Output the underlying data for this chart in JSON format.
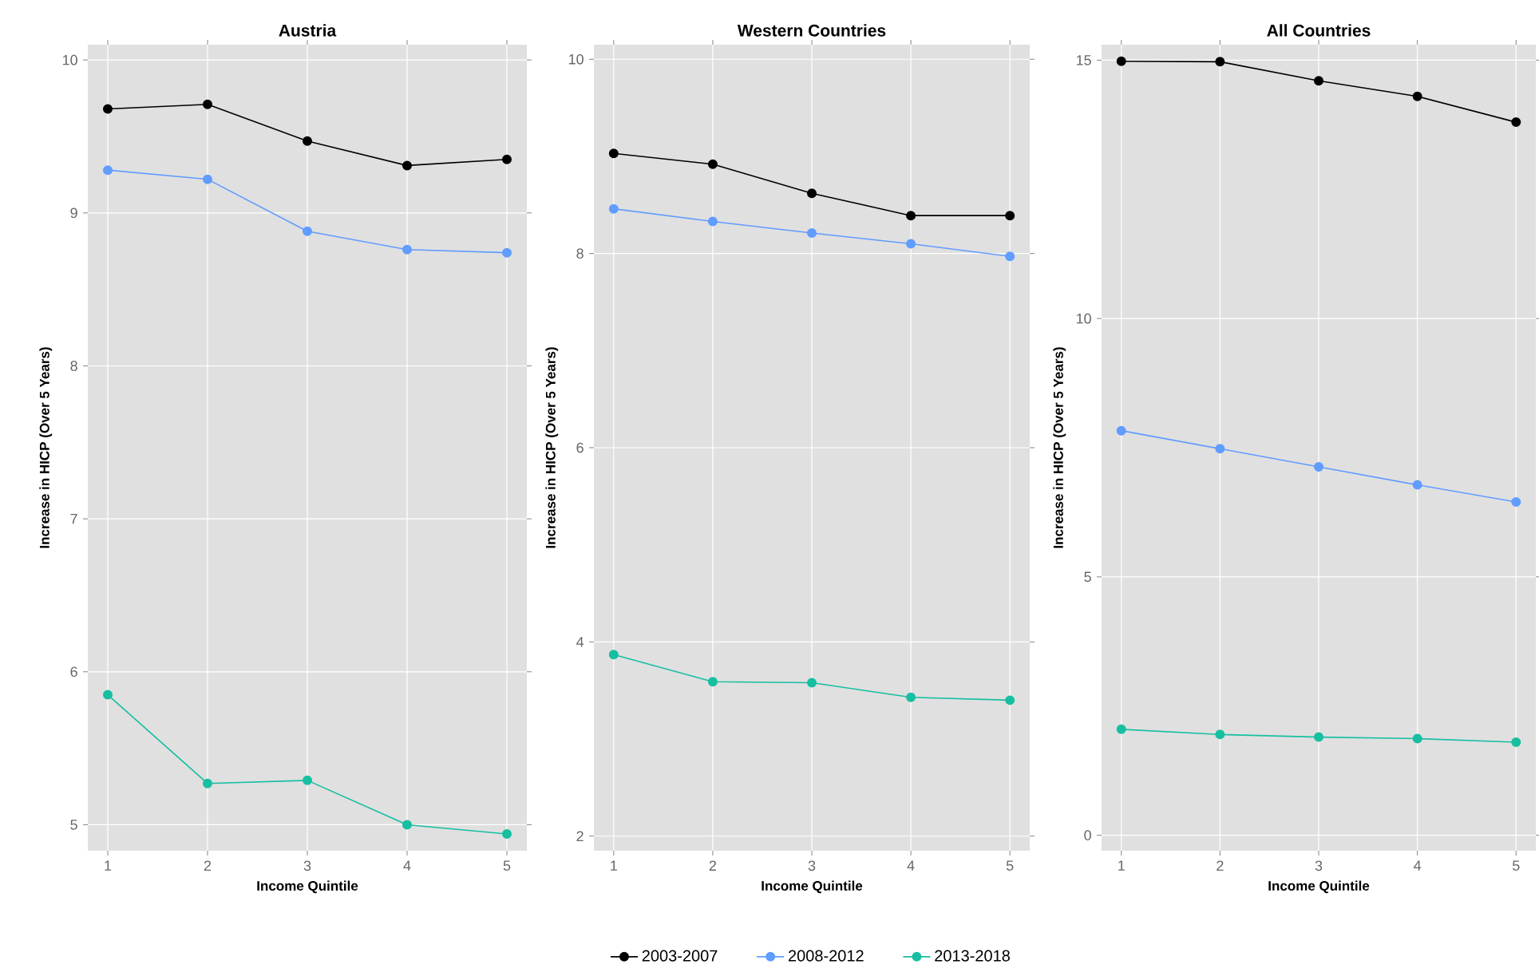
{
  "chart_data": [
    {
      "type": "line",
      "title": "Austria",
      "xlabel": "Income Quintile",
      "ylabel": "Increase in HICP (Over 5 Years)",
      "x": [
        1,
        2,
        3,
        4,
        5
      ],
      "xlim": [
        0.8,
        5.2
      ],
      "ylim": [
        4.83,
        10.1
      ],
      "xticks": [
        1,
        2,
        3,
        4,
        5
      ],
      "yticks": [
        5,
        6,
        7,
        8,
        9,
        10
      ],
      "grid": true,
      "marker": "circle",
      "line_style": "solid",
      "series": [
        {
          "color": "#000000",
          "values": [
            9.68,
            9.71,
            9.47,
            9.31,
            9.35
          ]
        },
        {
          "color": "#619cff",
          "values": [
            9.28,
            9.22,
            8.88,
            8.76,
            8.74
          ]
        },
        {
          "color": "#17bfa1",
          "values": [
            5.85,
            5.27,
            5.29,
            5.0,
            4.94
          ]
        }
      ]
    },
    {
      "type": "line",
      "title": "Western Countries",
      "xlabel": "Income Quintile",
      "ylabel": "Increase in HICP (Over 5 Years)",
      "x": [
        1,
        2,
        3,
        4,
        5
      ],
      "xlim": [
        0.8,
        5.2
      ],
      "ylim": [
        1.85,
        10.15
      ],
      "xticks": [
        1,
        2,
        3,
        4,
        5
      ],
      "yticks": [
        2,
        4,
        6,
        8,
        10
      ],
      "grid": true,
      "marker": "circle",
      "line_style": "solid",
      "legend": "bottom",
      "series": [
        {
          "name": "2003-2007",
          "color": "#000000",
          "values": [
            9.03,
            8.92,
            8.62,
            8.39,
            8.39
          ]
        },
        {
          "name": "2008-2012",
          "color": "#619cff",
          "values": [
            8.46,
            8.33,
            8.21,
            8.1,
            7.97
          ]
        },
        {
          "name": "2013-2018",
          "color": "#17bfa1",
          "values": [
            3.87,
            3.59,
            3.58,
            3.43,
            3.4
          ]
        }
      ]
    },
    {
      "type": "line",
      "title": "All Countries",
      "xlabel": "Income Quintile",
      "ylabel": "Increase in HICP (Over 5 Years)",
      "x": [
        1,
        2,
        3,
        4,
        5
      ],
      "xlim": [
        0.8,
        5.2
      ],
      "ylim": [
        -0.3,
        15.3
      ],
      "xticks": [
        1,
        2,
        3,
        4,
        5
      ],
      "yticks": [
        0,
        5,
        10,
        15
      ],
      "grid": true,
      "marker": "circle",
      "line_style": "solid",
      "series": [
        {
          "color": "#000000",
          "values": [
            14.98,
            14.97,
            14.6,
            14.3,
            13.8
          ]
        },
        {
          "color": "#619cff",
          "values": [
            7.83,
            7.48,
            7.13,
            6.78,
            6.45
          ]
        },
        {
          "color": "#17bfa1",
          "values": [
            2.05,
            1.95,
            1.9,
            1.87,
            1.8
          ]
        }
      ]
    }
  ]
}
